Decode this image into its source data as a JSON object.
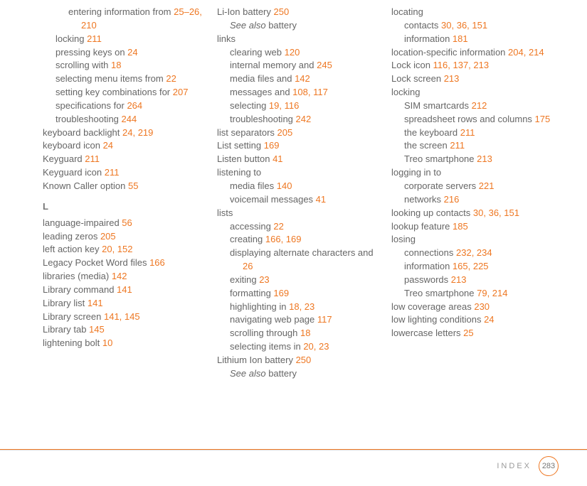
{
  "footer": {
    "label": "INDEX",
    "page": "283"
  },
  "accent": "#ee7722",
  "text": "#666",
  "c1": [
    {
      "lvl": 2,
      "t": "entering information from ",
      "p": "25–26, 210"
    },
    {
      "lvl": 1,
      "t": "locking ",
      "p": "211"
    },
    {
      "lvl": 1,
      "t": "pressing keys on ",
      "p": "24"
    },
    {
      "lvl": 1,
      "t": "scrolling with ",
      "p": "18"
    },
    {
      "lvl": 1,
      "t": "selecting menu items from ",
      "p": "22"
    },
    {
      "lvl": 1,
      "t": "setting key combinations for ",
      "p": "207"
    },
    {
      "lvl": 1,
      "t": "specifications for ",
      "p": "264"
    },
    {
      "lvl": 1,
      "t": "troubleshooting ",
      "p": "244"
    },
    {
      "lvl": 0,
      "t": "keyboard backlight ",
      "p": "24, 219"
    },
    {
      "lvl": 0,
      "t": "keyboard icon ",
      "p": "24"
    },
    {
      "lvl": 0,
      "t": "Keyguard ",
      "p": "211"
    },
    {
      "lvl": 0,
      "t": "Keyguard icon ",
      "p": "211"
    },
    {
      "lvl": 0,
      "t": "Known Caller option ",
      "p": "55"
    },
    {
      "letter": "L"
    },
    {
      "lvl": 0,
      "t": "language-impaired ",
      "p": "56"
    },
    {
      "lvl": 0,
      "t": "leading zeros ",
      "p": "205"
    },
    {
      "lvl": 0,
      "t": "left action key ",
      "p": "20, 152"
    },
    {
      "lvl": 0,
      "t": "Legacy Pocket Word files ",
      "p": "166"
    },
    {
      "lvl": 0,
      "t": "libraries (media) ",
      "p": "142"
    },
    {
      "lvl": 0,
      "t": "Library command ",
      "p": "141"
    },
    {
      "lvl": 0,
      "t": "Library list ",
      "p": "141"
    },
    {
      "lvl": 0,
      "t": "Library screen ",
      "p": "141, 145"
    },
    {
      "lvl": 0,
      "t": "Library tab ",
      "p": "145"
    },
    {
      "lvl": 0,
      "t": "lightening bolt ",
      "p": "10"
    }
  ],
  "c2": [
    {
      "lvl": 0,
      "t": "Li-Ion battery ",
      "p": "250"
    },
    {
      "lvl": 1,
      "see": "See also ",
      "t": "battery"
    },
    {
      "lvl": 0,
      "t": "links"
    },
    {
      "lvl": 1,
      "t": "clearing web ",
      "p": "120"
    },
    {
      "lvl": 1,
      "t": "internal memory and ",
      "p": "245"
    },
    {
      "lvl": 1,
      "t": "media files and ",
      "p": "142"
    },
    {
      "lvl": 1,
      "t": "messages and ",
      "p": "108, 117"
    },
    {
      "lvl": 1,
      "t": "selecting ",
      "p": "19, 116"
    },
    {
      "lvl": 1,
      "t": "troubleshooting ",
      "p": "242"
    },
    {
      "lvl": 0,
      "t": "list separators ",
      "p": "205"
    },
    {
      "lvl": 0,
      "t": "List setting ",
      "p": "169"
    },
    {
      "lvl": 0,
      "t": "Listen button ",
      "p": "41"
    },
    {
      "lvl": 0,
      "t": "listening to"
    },
    {
      "lvl": 1,
      "t": "media files ",
      "p": "140"
    },
    {
      "lvl": 1,
      "t": "voicemail messages ",
      "p": "41"
    },
    {
      "lvl": 0,
      "t": "lists"
    },
    {
      "lvl": 1,
      "t": "accessing ",
      "p": "22"
    },
    {
      "lvl": 1,
      "t": "creating ",
      "p": "166, 169"
    },
    {
      "lvl": 1,
      "t": "displaying alternate characters and ",
      "p": "26"
    },
    {
      "lvl": 1,
      "t": "exiting ",
      "p": "23"
    },
    {
      "lvl": 1,
      "t": "formatting ",
      "p": "169"
    },
    {
      "lvl": 1,
      "t": "highlighting in ",
      "p": "18, 23"
    },
    {
      "lvl": 1,
      "t": "navigating web page ",
      "p": "117"
    },
    {
      "lvl": 1,
      "t": "scrolling through ",
      "p": "18"
    },
    {
      "lvl": 1,
      "t": "selecting items in ",
      "p": "20, 23"
    },
    {
      "lvl": 0,
      "t": "Lithium Ion battery ",
      "p": "250"
    },
    {
      "lvl": 1,
      "see": "See also ",
      "t": "battery"
    }
  ],
  "c3": [
    {
      "lvl": 0,
      "t": "locating"
    },
    {
      "lvl": 1,
      "t": "contacts ",
      "p": "30, 36, 151"
    },
    {
      "lvl": 1,
      "t": "information ",
      "p": "181"
    },
    {
      "lvl": 0,
      "t": "location-specific information ",
      "p": "204, 214"
    },
    {
      "lvl": 0,
      "t": "Lock icon ",
      "p": "116, 137, 213"
    },
    {
      "lvl": 0,
      "t": "Lock screen ",
      "p": "213"
    },
    {
      "lvl": 0,
      "t": "locking"
    },
    {
      "lvl": 1,
      "t": "SIM smartcards ",
      "p": "212"
    },
    {
      "lvl": 1,
      "t": "spreadsheet rows and columns ",
      "p": "175"
    },
    {
      "lvl": 1,
      "t": "the keyboard ",
      "p": "211"
    },
    {
      "lvl": 1,
      "t": "the screen ",
      "p": "211"
    },
    {
      "lvl": 1,
      "t": "Treo smartphone ",
      "p": "213"
    },
    {
      "lvl": 0,
      "t": "logging in to"
    },
    {
      "lvl": 1,
      "t": "corporate servers ",
      "p": "221"
    },
    {
      "lvl": 1,
      "t": "networks ",
      "p": "216"
    },
    {
      "lvl": 0,
      "t": "looking up contacts ",
      "p": "30, 36, 151"
    },
    {
      "lvl": 0,
      "t": "lookup feature ",
      "p": "185"
    },
    {
      "lvl": 0,
      "t": "losing"
    },
    {
      "lvl": 1,
      "t": "connections ",
      "p": "232, 234"
    },
    {
      "lvl": 1,
      "t": "information ",
      "p": "165, 225"
    },
    {
      "lvl": 1,
      "t": "passwords ",
      "p": "213"
    },
    {
      "lvl": 1,
      "t": "Treo smartphone ",
      "p": "79, 214"
    },
    {
      "lvl": 0,
      "t": "low coverage areas ",
      "p": "230"
    },
    {
      "lvl": 0,
      "t": "low lighting conditions ",
      "p": "24"
    },
    {
      "lvl": 0,
      "t": "lowercase letters ",
      "p": "25"
    }
  ]
}
